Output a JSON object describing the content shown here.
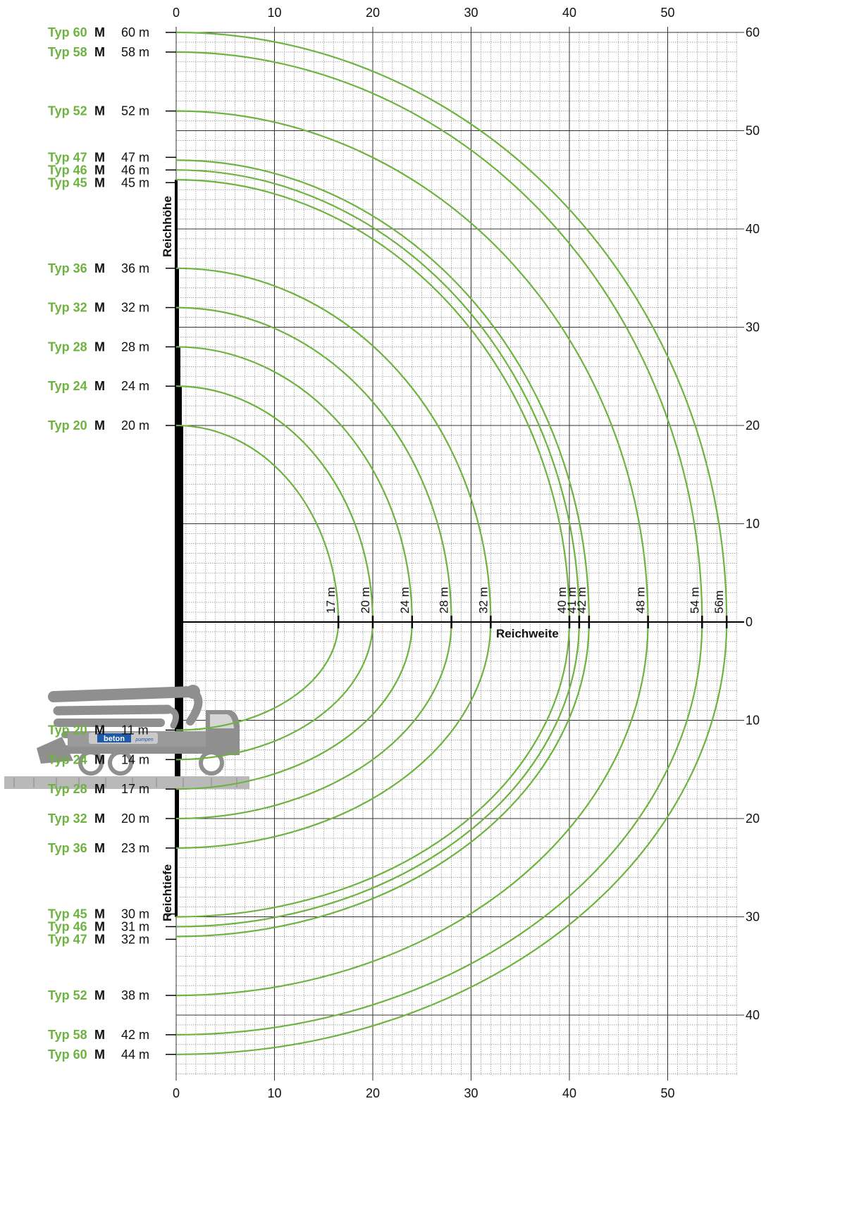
{
  "colors": {
    "curve": "#6db33f",
    "label_green": "#6db33f",
    "grid_major": "#333333",
    "grid_minor": "#777777",
    "text": "#111111"
  },
  "truck": {
    "logo_text": "beton",
    "logo_subtext": "pumpen"
  },
  "chart_data": {
    "type": "line",
    "xlabel": "Reichweite",
    "ylabel_up": "Reichhöhe",
    "ylabel_down": "Reichtiefe",
    "xlim": [
      0,
      57
    ],
    "ylim": [
      -46,
      60
    ],
    "x_ticks": [
      "0",
      "10",
      "20",
      "30",
      "40",
      "50"
    ],
    "y_ticks_up": [
      "60",
      "50",
      "40",
      "30",
      "20",
      "10",
      "0"
    ],
    "y_ticks_down": [
      "10",
      "20",
      "30",
      "40"
    ],
    "grid": true,
    "series": [
      {
        "typ": "Typ 20",
        "m": "M",
        "height": 20,
        "height_label": "20 m",
        "reach": 16.5,
        "reach_label": "17 m",
        "depth": 11,
        "depth_label": "11 m"
      },
      {
        "typ": "Typ 24",
        "m": "M",
        "height": 24,
        "height_label": "24 m",
        "reach": 20,
        "reach_label": "20 m",
        "depth": 14,
        "depth_label": "14 m"
      },
      {
        "typ": "Typ 28",
        "m": "M",
        "height": 28,
        "height_label": "28 m",
        "reach": 24,
        "reach_label": "24 m",
        "depth": 17,
        "depth_label": "17 m"
      },
      {
        "typ": "Typ 32",
        "m": "M",
        "height": 32,
        "height_label": "32 m",
        "reach": 28,
        "reach_label": "28 m",
        "depth": 20,
        "depth_label": "20 m"
      },
      {
        "typ": "Typ 36",
        "m": "M",
        "height": 36,
        "height_label": "36 m",
        "reach": 32,
        "reach_label": "32 m",
        "depth": 23,
        "depth_label": "23 m"
      },
      {
        "typ": "Typ 45",
        "m": "M",
        "height": 45,
        "height_label": "45 m",
        "reach": 40,
        "reach_label": "40 m",
        "depth": 30,
        "depth_label": "30 m"
      },
      {
        "typ": "Typ 46",
        "m": "M",
        "height": 46,
        "height_label": "46 m",
        "reach": 41,
        "reach_label": "41 m",
        "depth": 31,
        "depth_label": "31 m"
      },
      {
        "typ": "Typ 47",
        "m": "M",
        "height": 47,
        "height_label": "47 m",
        "reach": 42,
        "reach_label": "42 m",
        "depth": 32,
        "depth_label": "32 m"
      },
      {
        "typ": "Typ 52",
        "m": "M",
        "height": 52,
        "height_label": "52 m",
        "reach": 48,
        "reach_label": "48 m",
        "depth": 38,
        "depth_label": "38 m"
      },
      {
        "typ": "Typ 58",
        "m": "M",
        "height": 58,
        "height_label": "58 m",
        "reach": 53.5,
        "reach_label": "54 m",
        "depth": 42,
        "depth_label": "42 m"
      },
      {
        "typ": "Typ 60",
        "m": "M",
        "height": 60,
        "height_label": "60 m",
        "reach": 56,
        "reach_label": "56m",
        "depth": 44,
        "depth_label": "44 m"
      }
    ]
  }
}
